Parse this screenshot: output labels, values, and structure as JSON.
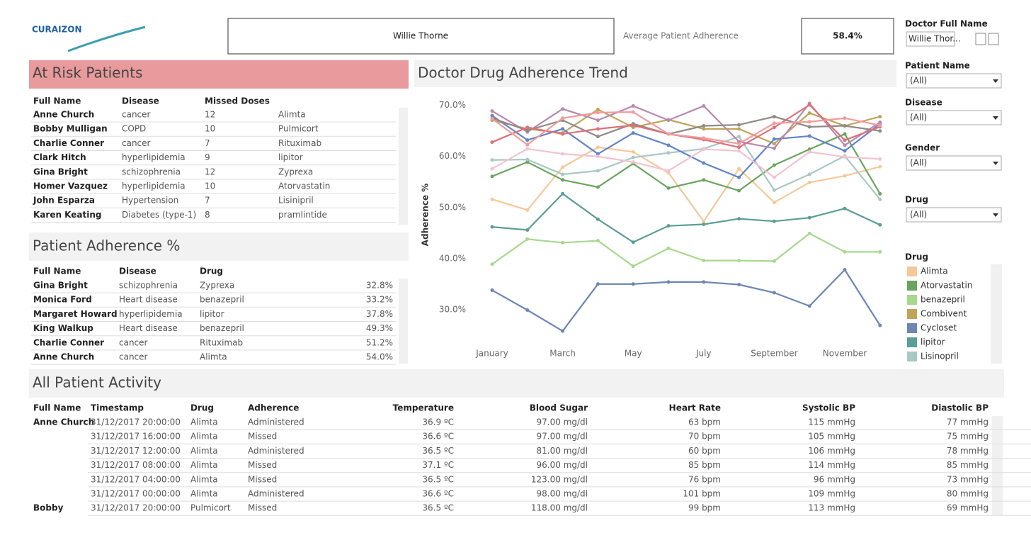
{
  "header": {
    "logo": "CURAIZON",
    "doctor": "Willie Thorne",
    "adherence_label": "Average Patient Adherence",
    "adherence_value": "58.4%"
  },
  "filters": [
    {
      "label": "Doctor Full Name",
      "value": "Willie Thor..."
    },
    {
      "label": "Patient Name",
      "value": "(All)"
    },
    {
      "label": "Disease",
      "value": "(All)"
    },
    {
      "label": "Gender",
      "value": "(All)"
    },
    {
      "label": "Drug",
      "value": "(All)"
    }
  ],
  "at_risk": {
    "title": "At Risk Patients",
    "columns": [
      "Full Name",
      "Disease",
      "Missed Doses"
    ],
    "rows": [
      [
        "Anne Church",
        "cancer",
        "12",
        "Alimta"
      ],
      [
        "Bobby Mulligan",
        "COPD",
        "10",
        "Pulmicort"
      ],
      [
        "Charlie Conner",
        "cancer",
        "7",
        "Rituximab"
      ],
      [
        "Clark Hitch",
        "hyperlipidemia",
        "9",
        "lipitor"
      ],
      [
        "Gina Bright",
        "schizophrenia",
        "12",
        "Zyprexa"
      ],
      [
        "Homer Vazquez",
        "hyperlipidemia",
        "10",
        "Atorvastatin"
      ],
      [
        "John Esparza",
        "Hypertension",
        "7",
        "Lisinipril"
      ],
      [
        "Karen Keating",
        "Diabetes (type-1)",
        "8",
        "pramlintide"
      ]
    ]
  },
  "adherence_table": {
    "title": "Patient Adherence %",
    "columns": [
      "Full Name",
      "Disease",
      "Drug"
    ],
    "rows": [
      [
        "Gina Bright",
        "schizophrenia",
        "Zyprexa",
        "32.8%"
      ],
      [
        "Monica Ford",
        "Heart disease",
        "benazepril",
        "33.2%"
      ],
      [
        "Margaret Howard",
        "hyperlipidemia",
        "lipitor",
        "37.8%"
      ],
      [
        "King Walkup",
        "Heart disease",
        "benazepril",
        "49.3%"
      ],
      [
        "Charlie Conner",
        "cancer",
        "Rituximab",
        "51.2%"
      ],
      [
        "Anne Church",
        "cancer",
        "Alimta",
        "54.0%"
      ]
    ]
  },
  "chart_data": {
    "type": "line",
    "title": "Doctor Drug Adherence Trend",
    "y_label": "Adherence %",
    "legend_title": "Drug",
    "categories": [
      "January",
      null,
      "March",
      null,
      "May",
      null,
      "July",
      null,
      "September",
      null,
      "November",
      null
    ],
    "ylim": [
      24,
      72.6
    ],
    "yticks": [
      {
        "value": 30,
        "label": "30.0%"
      },
      {
        "value": 40,
        "label": "40.0%"
      },
      {
        "value": 50,
        "label": "50.0%"
      },
      {
        "value": 60,
        "label": "60.0%"
      },
      {
        "value": 70,
        "label": "70.0%"
      }
    ],
    "grid": false,
    "series": [
      {
        "name": "Alimta",
        "color": "#f5c89a",
        "values": [
          51.6,
          49.5,
          57.9,
          61.8,
          60.9,
          56.8,
          47.3,
          57.6,
          51.0,
          54.9,
          56.2,
          58.0
        ]
      },
      {
        "name": "Atorvastatin",
        "color": "#6aa55f",
        "values": [
          56.1,
          58.9,
          55.4,
          54.0,
          58.6,
          53.8,
          55.4,
          53.3,
          58.3,
          61.4,
          64.4,
          52.7
        ]
      },
      {
        "name": "benazepril",
        "color": "#a8d88e",
        "values": [
          38.9,
          43.8,
          43.1,
          43.5,
          38.5,
          42.0,
          39.6,
          39.6,
          39.5,
          44.9,
          41.3,
          41.3
        ]
      },
      {
        "name": "Combivent",
        "color": "#c1a45a",
        "values": [
          67.1,
          65.4,
          64.6,
          69.2,
          65.7,
          67.2,
          65.4,
          65.4,
          62.5,
          68.5,
          66.0,
          67.8
        ]
      },
      {
        "name": "Cycloset",
        "color": "#6c87b3",
        "values": [
          33.8,
          29.9,
          25.8,
          35.0,
          35.0,
          35.4,
          35.4,
          34.9,
          33.3,
          30.7,
          37.8,
          26.9
        ]
      },
      {
        "name": "lipitor",
        "color": "#5b9e95",
        "values": [
          46.2,
          45.6,
          52.7,
          47.7,
          43.2,
          46.4,
          46.7,
          47.8,
          47.3,
          48.0,
          49.8,
          46.6
        ]
      },
      {
        "name": "Lisinopril",
        "color": "#a8c8c4",
        "values": [
          59.3,
          59.4,
          56.5,
          57.2,
          59.8,
          60.7,
          61.5,
          63.9,
          53.4,
          56.5,
          60.1,
          51.6
        ]
      },
      {
        "color": "#5f84c7",
        "values": [
          68.0,
          63.2,
          65.4,
          60.5,
          64.6,
          62.2,
          58.7,
          55.9,
          63.4,
          64.0,
          61.1,
          66.4
        ]
      },
      {
        "color": "#f2c3d0",
        "values": [
          57.6,
          61.5,
          60.5,
          60.0,
          58.9,
          57.2,
          61.4,
          61.1,
          55.9,
          60.9,
          59.9,
          59.5
        ]
      },
      {
        "color": "#b889b0",
        "values": [
          68.9,
          64.8,
          69.3,
          67.1,
          69.9,
          67.1,
          69.9,
          62.9,
          61.6,
          70.4,
          62.2,
          66.7
        ]
      },
      {
        "color": "#8f8a86",
        "values": [
          67.5,
          65.1,
          67.1,
          63.9,
          66.4,
          64.4,
          66.0,
          66.2,
          67.8,
          65.8,
          66.0,
          65.0
        ]
      },
      {
        "color": "#e0707a",
        "values": [
          62.8,
          65.7,
          64.4,
          65.4,
          66.1,
          64.4,
          63.3,
          61.8,
          65.7,
          70.1,
          63.2,
          65.8
        ]
      },
      {
        "color": "#f39b9b",
        "values": [
          67.4,
          62.3,
          67.5,
          68.6,
          68.7,
          64.4,
          63.6,
          62.5,
          66.5,
          66.8,
          67.5,
          66.1
        ]
      }
    ]
  },
  "activity": {
    "title": "All Patient Activity",
    "columns": [
      "Full Name",
      "Timestamp",
      "Drug",
      "Adherence",
      "Temperature",
      "Blood Sugar",
      "Heart Rate",
      "Systolic BP",
      "Diastolic BP"
    ],
    "rows": [
      [
        "Anne Church",
        "31/12/2017 20:00:00",
        "Alimta",
        "Administered",
        "36.9 ºC",
        "97.00 mg/dl",
        "63 bpm",
        "115 mmHg",
        "77 mmHg"
      ],
      [
        null,
        "31/12/2017 16:00:00",
        "Alimta",
        "Missed",
        "36.6 ºC",
        "97.00 mg/dl",
        "70 bpm",
        "105 mmHg",
        "75 mmHg"
      ],
      [
        null,
        "31/12/2017 12:00:00",
        "Alimta",
        "Administered",
        "36.5 ºC",
        "81.00 mg/dl",
        "60 bpm",
        "106 mmHg",
        "78 mmHg"
      ],
      [
        null,
        "31/12/2017 08:00:00",
        "Alimta",
        "Missed",
        "37.1 ºC",
        "96.00 mg/dl",
        "85 bpm",
        "114 mmHg",
        "85 mmHg"
      ],
      [
        null,
        "31/12/2017 04:00:00",
        "Alimta",
        "Missed",
        "36.5 ºC",
        "123.00 mg/dl",
        "76 bpm",
        "96 mmHg",
        "73 mmHg"
      ],
      [
        null,
        "31/12/2017 00:00:00",
        "Alimta",
        "Administered",
        "36.6 ºC",
        "98.00 mg/dl",
        "101 bpm",
        "109 mmHg",
        "80 mmHg"
      ],
      [
        "Bobby",
        "31/12/2017 20:00:00",
        "Pulmicort",
        "Missed",
        "36.5 ºC",
        "118.00 mg/dl",
        "99 bpm",
        "113 mmHg",
        "69 mmHg"
      ]
    ]
  }
}
